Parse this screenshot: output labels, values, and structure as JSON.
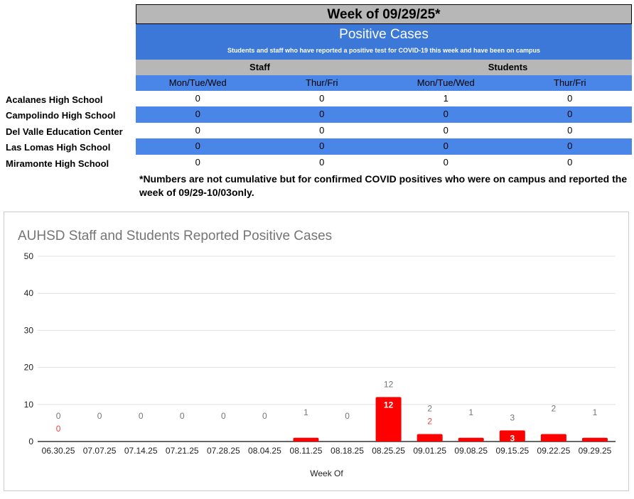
{
  "table": {
    "week_title": "Week of 09/29/25*",
    "section_title": "Positive Cases",
    "subtitle": "Students and staff who have reported a positive test for COVID-19 this week and have been on campus",
    "groups": [
      "Staff",
      "Students"
    ],
    "columns": [
      "Mon/Tue/Wed",
      "Thur/Fri",
      "Mon/Tue/Wed",
      "Thur/Fri"
    ],
    "rows": [
      {
        "school": "Acalanes High School",
        "values": [
          "0",
          "0",
          "1",
          "0"
        ]
      },
      {
        "school": "Campolindo High School",
        "values": [
          "0",
          "0",
          "0",
          "0"
        ]
      },
      {
        "school": "Del Valle Education Center",
        "values": [
          "0",
          "0",
          "0",
          "0"
        ]
      },
      {
        "school": "Las Lomas High School",
        "values": [
          "0",
          "0",
          "0",
          "0"
        ]
      },
      {
        "school": "Miramonte High School",
        "values": [
          "0",
          "0",
          "0",
          "0"
        ]
      }
    ],
    "note": "*Numbers are not cumulative but for confirmed COVID positives who were on campus and reported the week of 09/29-10/03only."
  },
  "chart_data": {
    "type": "bar",
    "title": "AUHSD Staff and Students Reported Positive Cases",
    "xlabel": "Week Of",
    "ylabel": "",
    "ylim": [
      0,
      50
    ],
    "yticks": [
      0,
      10,
      20,
      30,
      40,
      50
    ],
    "grid": true,
    "categories": [
      "06.30.25",
      "07.07.25",
      "07.14.25",
      "07.21.25",
      "07.28.25",
      "08.04.25",
      "08.11.25",
      "08.18.25",
      "08.25.25",
      "09.01.25",
      "09.08.25",
      "09.15.25",
      "09.22.25",
      "09.29.25"
    ],
    "values": [
      0,
      0,
      0,
      0,
      0,
      0,
      1,
      0,
      12,
      2,
      1,
      3,
      2,
      1
    ],
    "total_labels": [
      "0",
      "0",
      "0",
      "0",
      "0",
      "0",
      "1",
      "0",
      "12",
      "2",
      "1",
      "3",
      "2",
      "1"
    ],
    "bar_labels": [
      "0",
      null,
      null,
      null,
      null,
      null,
      null,
      null,
      "12",
      "2",
      null,
      "3",
      null,
      null
    ],
    "colors": {
      "bar": "#ff0000",
      "total_label": "#757575",
      "grid": "#e0e0e0"
    }
  }
}
